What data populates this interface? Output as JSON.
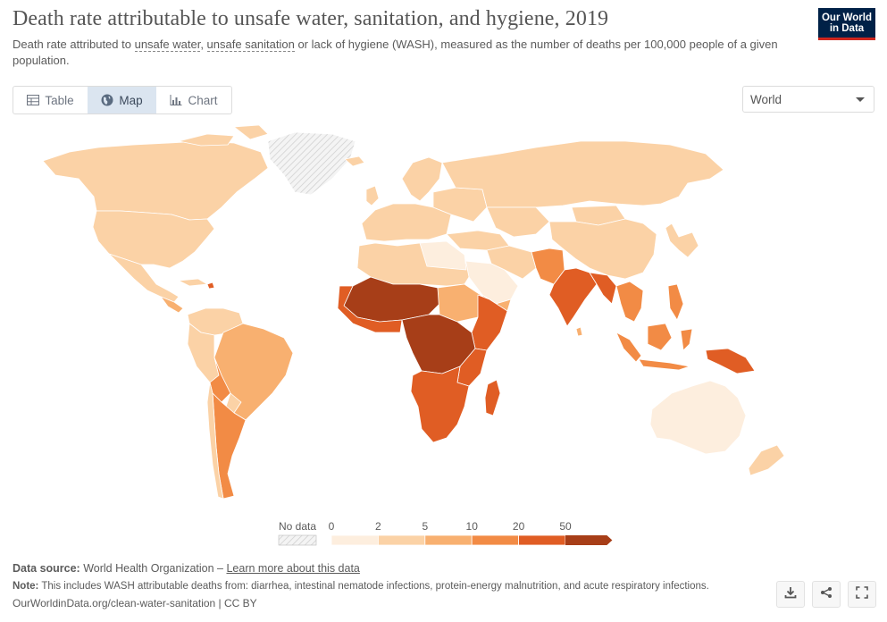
{
  "header": {
    "title": "Death rate attributable to unsafe water, sanitation, and hygiene, 2019",
    "subtitle_pre": "Death rate attributed to ",
    "subtitle_link1": "unsafe water",
    "subtitle_sep": ", ",
    "subtitle_link2": "unsafe sanitation",
    "subtitle_post": " or lack of hygiene (WASH), measured as the number of deaths per 100,000 people of a given population.",
    "logo_line1": "Our World",
    "logo_line2": "in Data"
  },
  "tabs": [
    {
      "label": "Table",
      "icon": "table-icon",
      "active": false
    },
    {
      "label": "Map",
      "icon": "globe-icon",
      "active": true
    },
    {
      "label": "Chart",
      "icon": "chart-icon",
      "active": false
    }
  ],
  "region_select": {
    "value": "World"
  },
  "legend": {
    "no_data_label": "No data",
    "bins": [
      "0",
      "2",
      "5",
      "10",
      "20",
      "50"
    ],
    "colors": [
      "#fdeede",
      "#fbd2a6",
      "#f8b070",
      "#f28b45",
      "#e05d24",
      "#a73e18"
    ]
  },
  "map": {
    "colors": {
      "ocean": "#ffffff",
      "border": "#ffffff",
      "no_data": "#e8e8e8",
      "c0": "#fdeede",
      "c1": "#fbd2a6",
      "c2": "#f8b070",
      "c3": "#f28b45",
      "c4": "#e05d24",
      "c5": "#a73e18"
    }
  },
  "footer": {
    "source_label": "Data source:",
    "source_text": " World Health Organization – ",
    "source_link": "Learn more about this data",
    "note_label": "Note:",
    "note_text": " This includes WASH attributable deaths from: diarrhea, intestinal nematode infections, protein-energy malnutrition, and acute respiratory infections.",
    "url_text": "OurWorldinData.org/clean-water-sanitation | CC BY"
  },
  "actions": [
    {
      "name": "download-button",
      "icon": "download-icon"
    },
    {
      "name": "share-button",
      "icon": "share-icon"
    },
    {
      "name": "fullscreen-button",
      "icon": "fullscreen-icon"
    }
  ]
}
